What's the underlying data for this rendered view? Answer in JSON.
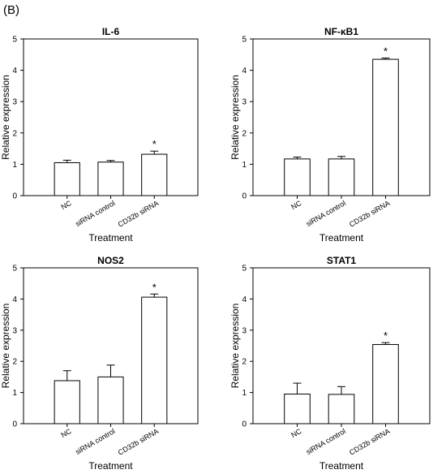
{
  "figure": {
    "panel_label": "(B)"
  },
  "chart_data": [
    {
      "type": "bar",
      "title": "IL-6",
      "categories": [
        "NC",
        "siRNA control",
        "CD32b siRNA"
      ],
      "values": [
        1.05,
        1.07,
        1.32
      ],
      "errors": [
        0.08,
        0.05,
        0.1
      ],
      "significance": [
        "",
        "",
        "*"
      ],
      "xlabel": "Treatment",
      "ylabel": "Relative expression",
      "ylim": [
        0,
        5
      ],
      "yticks": [
        0,
        1,
        2,
        3,
        4,
        5
      ]
    },
    {
      "type": "bar",
      "title": "NF-κB1",
      "categories": [
        "NC",
        "siRNA control",
        "CD32b siRNA"
      ],
      "values": [
        1.17,
        1.17,
        4.35
      ],
      "errors": [
        0.06,
        0.08,
        0.04
      ],
      "significance": [
        "",
        "",
        "*"
      ],
      "xlabel": "Treatment",
      "ylabel": "Relative expression",
      "ylim": [
        0,
        5
      ],
      "yticks": [
        0,
        1,
        2,
        3,
        4,
        5
      ]
    },
    {
      "type": "bar",
      "title": "NOS2",
      "categories": [
        "NC",
        "siRNA control",
        "CD32b siRNA"
      ],
      "values": [
        1.38,
        1.5,
        4.06
      ],
      "errors": [
        0.32,
        0.38,
        0.1
      ],
      "significance": [
        "",
        "",
        "*"
      ],
      "xlabel": "Treatment",
      "ylabel": "Relative expression",
      "ylim": [
        0,
        5
      ],
      "yticks": [
        0,
        1,
        2,
        3,
        4,
        5
      ]
    },
    {
      "type": "bar",
      "title": "STAT1",
      "categories": [
        "NC",
        "siRNA control",
        "CD32b siRNA"
      ],
      "values": [
        0.95,
        0.94,
        2.54
      ],
      "errors": [
        0.35,
        0.25,
        0.06
      ],
      "significance": [
        "",
        "",
        "*"
      ],
      "xlabel": "Treatment",
      "ylabel": "Relative expression",
      "ylim": [
        0,
        5
      ],
      "yticks": [
        0,
        1,
        2,
        3,
        4,
        5
      ]
    }
  ]
}
